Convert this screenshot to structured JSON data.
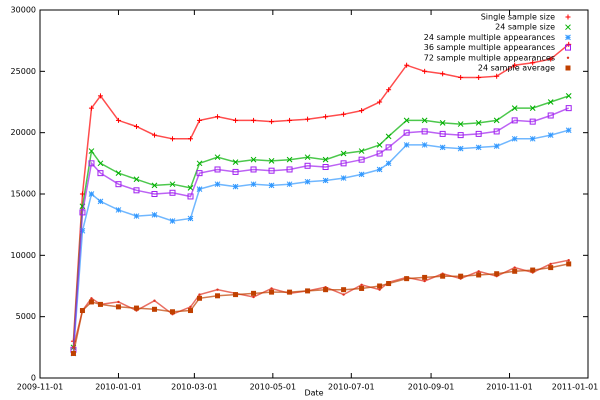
{
  "chart_data": {
    "type": "scatter-line",
    "x_label": "Date",
    "x": [
      "2009-11-27",
      "2009-12-04",
      "2009-12-11",
      "2009-12-18",
      "2010-01-01",
      "2010-01-15",
      "2010-01-29",
      "2010-02-12",
      "2010-02-26",
      "2010-03-05",
      "2010-03-19",
      "2010-04-02",
      "2010-04-16",
      "2010-04-30",
      "2010-05-14",
      "2010-05-28",
      "2010-06-11",
      "2010-06-25",
      "2010-07-09",
      "2010-07-23",
      "2010-07-30",
      "2010-08-13",
      "2010-08-27",
      "2010-09-10",
      "2010-09-24",
      "2010-10-08",
      "2010-10-22",
      "2010-11-05",
      "2010-11-19",
      "2010-12-03",
      "2010-12-17"
    ],
    "xlim": [
      "2009-11-01",
      "2011-01-01"
    ],
    "xticks": [
      "2009-11-01",
      "2010-01-01",
      "2010-03-01",
      "2010-05-01",
      "2010-07-01",
      "2010-09-01",
      "2010-11-01",
      "2011-01-01"
    ],
    "ylim": [
      0,
      30000
    ],
    "yticks": [
      0,
      5000,
      10000,
      15000,
      20000,
      25000,
      30000
    ],
    "grid": false,
    "legend": "top-right",
    "series": [
      {
        "name": "Single sample size",
        "color": "#ff0000",
        "marker": "plus",
        "values": [
          3000,
          15000,
          22000,
          23000,
          21000,
          20500,
          19800,
          19500,
          19500,
          21000,
          21300,
          21000,
          21000,
          20900,
          21000,
          21100,
          21300,
          21500,
          21800,
          22500,
          23500,
          25500,
          25000,
          24800,
          24500,
          24500,
          24600,
          25500,
          25700,
          26000,
          27200
        ]
      },
      {
        "name": "24 sample size",
        "color": "#00b000",
        "marker": "cross",
        "values": [
          2500,
          14000,
          18500,
          17500,
          16700,
          16200,
          15700,
          15800,
          15500,
          17500,
          18000,
          17600,
          17800,
          17700,
          17800,
          18000,
          17800,
          18300,
          18500,
          19000,
          19700,
          21000,
          21000,
          20800,
          20700,
          20800,
          21000,
          22000,
          22000,
          22500,
          23000
        ]
      },
      {
        "name": "24 sample multiple appearances",
        "color": "#3399ff",
        "marker": "star",
        "values": [
          2000,
          12000,
          15000,
          14400,
          13700,
          13200,
          13300,
          12800,
          13000,
          15400,
          15800,
          15600,
          15800,
          15700,
          15800,
          16000,
          16100,
          16300,
          16600,
          17000,
          17500,
          19000,
          19000,
          18800,
          18700,
          18800,
          18900,
          19500,
          19500,
          19800,
          20200
        ]
      },
      {
        "name": "36 sample multiple appearances",
        "color": "#a020f0",
        "marker": "square",
        "values": [
          2300,
          13500,
          17500,
          16700,
          15800,
          15300,
          15000,
          15100,
          14800,
          16700,
          17000,
          16800,
          17000,
          16900,
          17000,
          17300,
          17200,
          17500,
          17800,
          18300,
          18800,
          20000,
          20100,
          19900,
          19800,
          19900,
          20100,
          21000,
          20900,
          21400,
          22000
        ]
      },
      {
        "name": "72 sample multiple appearances",
        "color": "#e03020",
        "marker": "dot",
        "values": [
          2500,
          5500,
          6500,
          6000,
          6200,
          5500,
          6300,
          5200,
          5800,
          6800,
          7200,
          6900,
          6600,
          7300,
          6900,
          7100,
          7400,
          6800,
          7600,
          7200,
          7800,
          8200,
          7900,
          8500,
          8100,
          8700,
          8300,
          9000,
          8600,
          9300,
          9600
        ]
      },
      {
        "name": "24 sample average",
        "color": "#c04000",
        "marker": "box",
        "values": [
          2000,
          5500,
          6200,
          6000,
          5800,
          5700,
          5600,
          5400,
          5500,
          6500,
          6700,
          6800,
          6900,
          7000,
          7000,
          7100,
          7200,
          7200,
          7300,
          7500,
          7700,
          8100,
          8200,
          8300,
          8300,
          8400,
          8500,
          8700,
          8800,
          9000,
          9300
        ]
      }
    ]
  }
}
